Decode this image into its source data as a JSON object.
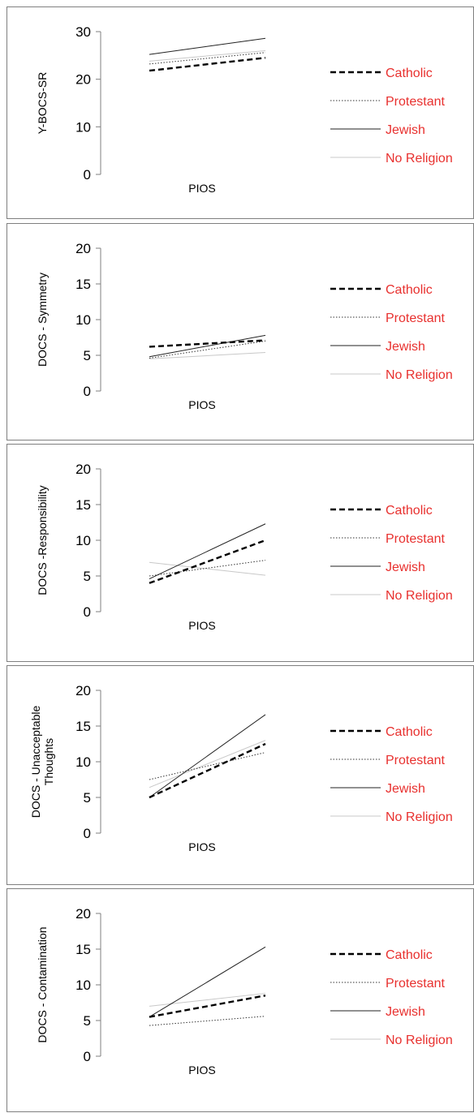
{
  "legend_color": "#e8302e",
  "chart_data": [
    {
      "type": "line",
      "xlabel": "PIOS",
      "ylabel": [
        "Y-BOCS-SR"
      ],
      "ylim": [
        0,
        30
      ],
      "yticks": [
        "0",
        "10",
        "20",
        "30"
      ],
      "legend": "right",
      "series": [
        {
          "name": "Catholic",
          "style": "bold-dash",
          "color": "#000000",
          "values": [
            21.8,
            24.5
          ]
        },
        {
          "name": "Protestant",
          "style": "dot",
          "color": "#333333",
          "values": [
            23.2,
            25.6
          ]
        },
        {
          "name": "Jewish",
          "style": "solid",
          "color": "#222222",
          "values": [
            25.2,
            28.6
          ]
        },
        {
          "name": "No Religion",
          "style": "faint",
          "color": "#c8c8c8",
          "values": [
            23.8,
            26.0
          ]
        }
      ]
    },
    {
      "type": "line",
      "xlabel": "PIOS",
      "ylabel": [
        "DOCS - Symmetry"
      ],
      "ylim": [
        0,
        20
      ],
      "yticks": [
        "0",
        "5",
        "10",
        "15",
        "20"
      ],
      "legend": "right",
      "series": [
        {
          "name": "Catholic",
          "style": "bold-dash",
          "color": "#000000",
          "values": [
            6.2,
            7.1
          ]
        },
        {
          "name": "Protestant",
          "style": "dot",
          "color": "#333333",
          "values": [
            4.6,
            7.0
          ]
        },
        {
          "name": "Jewish",
          "style": "solid",
          "color": "#222222",
          "values": [
            4.8,
            7.8
          ]
        },
        {
          "name": "No Religion",
          "style": "faint",
          "color": "#c8c8c8",
          "values": [
            4.5,
            5.4
          ]
        }
      ]
    },
    {
      "type": "line",
      "xlabel": "PIOS",
      "ylabel": [
        "DOCS -Responsibility"
      ],
      "ylim": [
        0,
        20
      ],
      "yticks": [
        "0",
        "5",
        "10",
        "15",
        "20"
      ],
      "legend": "right",
      "series": [
        {
          "name": "Catholic",
          "style": "bold-dash",
          "color": "#000000",
          "values": [
            4.0,
            10.0
          ]
        },
        {
          "name": "Protestant",
          "style": "dot",
          "color": "#333333",
          "values": [
            5.0,
            7.2
          ]
        },
        {
          "name": "Jewish",
          "style": "solid",
          "color": "#222222",
          "values": [
            4.6,
            12.3
          ]
        },
        {
          "name": "No Religion",
          "style": "faint",
          "color": "#c8c8c8",
          "values": [
            6.9,
            5.1
          ]
        }
      ]
    },
    {
      "type": "line",
      "xlabel": "PIOS",
      "ylabel": [
        "DOCS - Unacceptable",
        "Thoughts"
      ],
      "ylim": [
        0,
        20
      ],
      "yticks": [
        "0",
        "5",
        "10",
        "15",
        "20"
      ],
      "legend": "right",
      "series": [
        {
          "name": "Catholic",
          "style": "bold-dash",
          "color": "#000000",
          "values": [
            5.0,
            12.5
          ]
        },
        {
          "name": "Protestant",
          "style": "dot",
          "color": "#333333",
          "values": [
            7.5,
            11.3
          ]
        },
        {
          "name": "Jewish",
          "style": "solid",
          "color": "#222222",
          "values": [
            5.0,
            16.6
          ]
        },
        {
          "name": "No Religion",
          "style": "faint",
          "color": "#c8c8c8",
          "values": [
            6.4,
            13.0
          ]
        }
      ]
    },
    {
      "type": "line",
      "xlabel": "PIOS",
      "ylabel": [
        "DOCS - Contamination"
      ],
      "ylim": [
        0,
        20
      ],
      "yticks": [
        "0",
        "5",
        "10",
        "15",
        "20"
      ],
      "legend": "right",
      "series": [
        {
          "name": "Catholic",
          "style": "bold-dash",
          "color": "#000000",
          "values": [
            5.5,
            8.5
          ]
        },
        {
          "name": "Protestant",
          "style": "dot",
          "color": "#333333",
          "values": [
            4.3,
            5.6
          ]
        },
        {
          "name": "Jewish",
          "style": "solid",
          "color": "#222222",
          "values": [
            5.5,
            15.3
          ]
        },
        {
          "name": "No Religion",
          "style": "faint",
          "color": "#c8c8c8",
          "values": [
            7.0,
            8.8
          ]
        }
      ]
    }
  ]
}
